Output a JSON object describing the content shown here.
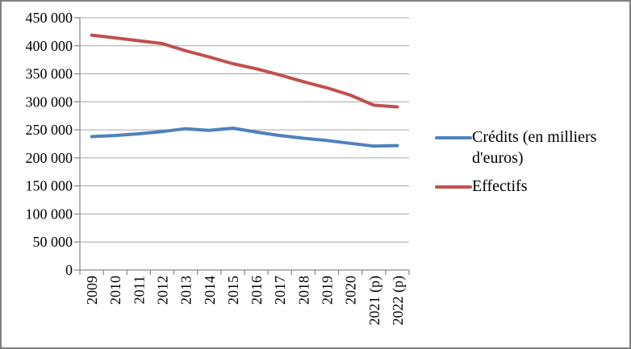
{
  "chart_data": {
    "type": "line",
    "title": "",
    "xlabel": "",
    "ylabel": "",
    "categories": [
      "2009",
      "2010",
      "2011",
      "2012",
      "2013",
      "2014",
      "2015",
      "2016",
      "2017",
      "2018",
      "2019",
      "2020",
      "2021 (p)",
      "2022 (p)"
    ],
    "series": [
      {
        "name": "Crédits (en milliers d'euros)",
        "color": "#4F81BD",
        "values": [
          238000,
          240000,
          243000,
          247000,
          252000,
          249000,
          253000,
          246000,
          240000,
          235000,
          231000,
          226000,
          221000,
          222000
        ]
      },
      {
        "name": "Effectifs",
        "color": "#C0504D",
        "values": [
          419000,
          414000,
          409000,
          404000,
          391000,
          380000,
          368000,
          359000,
          348000,
          336000,
          325000,
          312000,
          294000,
          291000
        ]
      }
    ],
    "ylim": [
      0,
      450000
    ],
    "y_tick_step": 50000,
    "y_tick_labels": [
      "0",
      "50 000",
      "100 000",
      "150 000",
      "200 000",
      "250 000",
      "300 000",
      "350 000",
      "400 000",
      "450 000"
    ],
    "grid": "horizontal gridlines on",
    "legend_position": "right",
    "colors": {
      "axis": "#8C8C8C",
      "gridline": "#A6A6A6",
      "text": "#000000",
      "background": "#FFFFFF",
      "frame_border": "#7F7F7F"
    }
  }
}
